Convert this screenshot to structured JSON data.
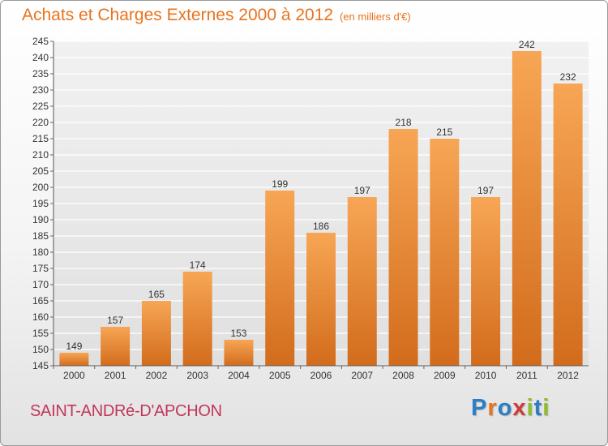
{
  "header": {
    "title": "Achats et Charges Externes 2000 à 2012",
    "subtitle": "(en milliers d'€)"
  },
  "footer": {
    "commune": "SAINT-ANDRé-D'APCHON",
    "brand_letters": [
      {
        "char": "P",
        "color": "#2a7fc7"
      },
      {
        "char": "r",
        "color": "#e8731e"
      },
      {
        "char": "o",
        "color": "#2a7fc7"
      },
      {
        "char": "x",
        "color": "#d03a3a"
      },
      {
        "char": "i",
        "color": "#8cbf26"
      },
      {
        "char": "t",
        "color": "#2a7fc7"
      },
      {
        "char": "i",
        "color": "#8cbf26"
      }
    ]
  },
  "colors": {
    "title": "#e8731e",
    "bar_light": "#f5a050",
    "bar_dark": "#d06a1c",
    "commune": "#c2365a"
  },
  "chart_data": {
    "type": "bar",
    "title": "Achats et Charges Externes 2000 à 2012",
    "subtitle": "(en milliers d'€)",
    "categories": [
      "2000",
      "2001",
      "2002",
      "2003",
      "2004",
      "2005",
      "2006",
      "2007",
      "2008",
      "2009",
      "2010",
      "2011",
      "2012"
    ],
    "values": [
      149,
      157,
      165,
      174,
      153,
      199,
      186,
      197,
      218,
      215,
      197,
      242,
      232
    ],
    "ylim": [
      145,
      245
    ],
    "yticks": [
      145,
      150,
      155,
      160,
      165,
      170,
      175,
      180,
      185,
      190,
      195,
      200,
      205,
      210,
      215,
      220,
      225,
      230,
      235,
      240,
      245
    ],
    "grid": true,
    "legend": "none"
  }
}
